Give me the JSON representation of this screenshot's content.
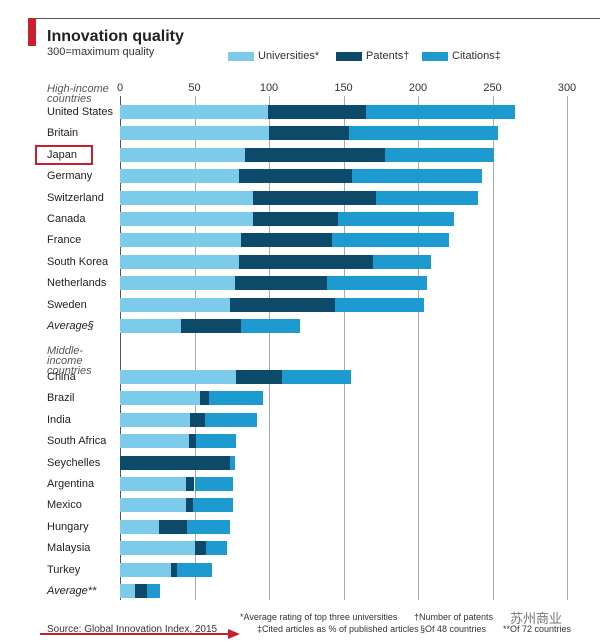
{
  "header": {
    "title": "Innovation quality",
    "subtitle": "300=maximum quality"
  },
  "colors": {
    "universities": "#7ccbea",
    "patents": "#0d4a6a",
    "citations": "#1d9bd1",
    "accent": "#c8202f"
  },
  "chart_data": {
    "type": "bar",
    "orientation": "horizontal-stacked",
    "title": "Innovation quality",
    "subtitle": "300=maximum quality",
    "xlim": [
      0,
      300
    ],
    "xticks": [
      "0",
      "50",
      "100",
      "150",
      "200",
      "250",
      "300"
    ],
    "legend": [
      "Universities*",
      "Patents†",
      "Citations‡"
    ],
    "legend_placement": "top",
    "groups": [
      {
        "label": "High-income countries",
        "rows": [
          {
            "name": "United States",
            "universities": 99,
            "patents": 66,
            "citations": 100
          },
          {
            "name": "Britain",
            "universities": 100,
            "patents": 54,
            "citations": 100
          },
          {
            "name": "Japan",
            "universities": 84,
            "patents": 94,
            "citations": 73
          },
          {
            "name": "Germany",
            "universities": 80,
            "patents": 76,
            "citations": 87
          },
          {
            "name": "Switzerland",
            "universities": 89,
            "patents": 83,
            "citations": 68
          },
          {
            "name": "Canada",
            "universities": 89,
            "patents": 57,
            "citations": 78
          },
          {
            "name": "France",
            "universities": 81,
            "patents": 61,
            "citations": 79
          },
          {
            "name": "South Korea",
            "universities": 80,
            "patents": 90,
            "citations": 39
          },
          {
            "name": "Netherlands",
            "universities": 77,
            "patents": 62,
            "citations": 67
          },
          {
            "name": "Sweden",
            "universities": 74,
            "patents": 70,
            "citations": 60
          },
          {
            "name": "Average§",
            "universities": 41,
            "patents": 40,
            "citations": 40,
            "average": true
          }
        ]
      },
      {
        "label": "Middle-income countries",
        "rows": [
          {
            "name": "China",
            "universities": 78,
            "patents": 31,
            "citations": 46
          },
          {
            "name": "Brazil",
            "universities": 54,
            "patents": 6,
            "citations": 36
          },
          {
            "name": "India",
            "universities": 47,
            "patents": 10,
            "citations": 35
          },
          {
            "name": "South Africa",
            "universities": 46,
            "patents": 5,
            "citations": 27
          },
          {
            "name": "Seychelles",
            "universities": 0,
            "patents": 74,
            "citations": 3
          },
          {
            "name": "Argentina",
            "universities": 44,
            "patents": 6,
            "citations": 26
          },
          {
            "name": "Mexico",
            "universities": 44,
            "patents": 5,
            "citations": 27
          },
          {
            "name": "Hungary",
            "universities": 26,
            "patents": 19,
            "citations": 29
          },
          {
            "name": "Malaysia",
            "universities": 50,
            "patents": 8,
            "citations": 14
          },
          {
            "name": "Turkey",
            "universities": 34,
            "patents": 4,
            "citations": 24
          },
          {
            "name": "Average**",
            "universities": 10,
            "patents": 8,
            "citations": 9,
            "average": true
          }
        ]
      }
    ],
    "highlighted": "Japan",
    "footnotes": [
      "*Average rating of top three universities",
      "†Number of patents",
      "‡Cited articles as % of published articles",
      "§Of 48 countries",
      "**Of 72 countries"
    ],
    "source": "Source: Global Innovation Index, 2015"
  },
  "watermark": "苏州商业"
}
